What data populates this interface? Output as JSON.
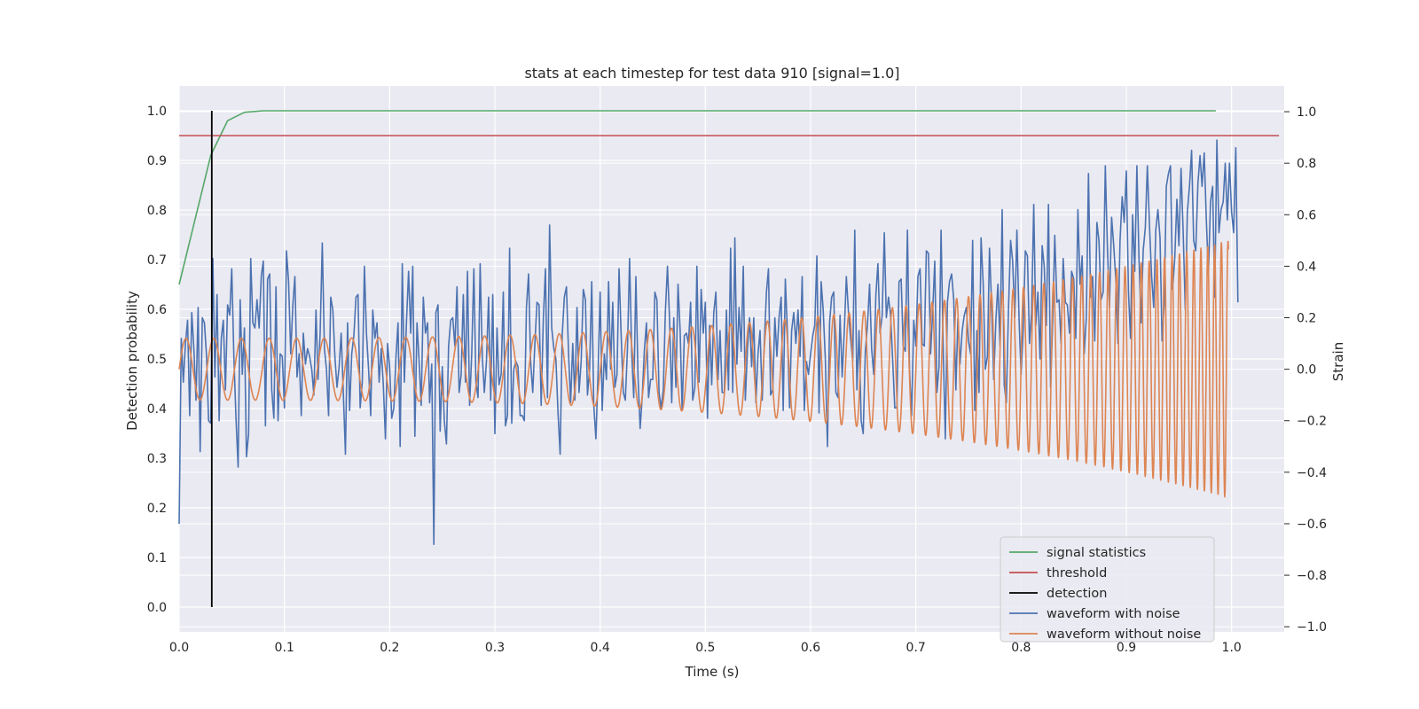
{
  "chart_data": {
    "type": "line",
    "title": "stats at each timestep for test data 910 [signal=1.0]",
    "xlabel": "Time (s)",
    "ylabel_left": "Detection probability",
    "ylabel_right": "Strain",
    "xlim": [
      0.0,
      1.05
    ],
    "ylim_left": [
      -0.05,
      1.05
    ],
    "ylim_right": [
      -1.02,
      1.1
    ],
    "x_ticks": [
      "0.0",
      "0.1",
      "0.2",
      "0.3",
      "0.4",
      "0.5",
      "0.6",
      "0.7",
      "0.8",
      "0.9",
      "1.0"
    ],
    "y_ticks_left": [
      "0.0",
      "0.1",
      "0.2",
      "0.3",
      "0.4",
      "0.5",
      "0.6",
      "0.7",
      "0.8",
      "0.9",
      "1.0"
    ],
    "y_ticks_right": [
      "−1.0",
      "−0.8",
      "−0.6",
      "−0.4",
      "−0.2",
      "0.0",
      "0.2",
      "0.4",
      "0.6",
      "0.8",
      "1.0"
    ],
    "grid": true,
    "legend_position": "lower-right",
    "series": [
      {
        "name": "signal statistics",
        "axis": "left",
        "color": "#55a868",
        "x": [
          0.0,
          0.015,
          0.03,
          0.046,
          0.062,
          0.08,
          0.1,
          0.2,
          0.3,
          0.4,
          0.5,
          0.6,
          0.7,
          0.8,
          0.9,
          0.985
        ],
        "y": [
          0.65,
          0.78,
          0.91,
          0.98,
          0.997,
          1.0,
          1.0,
          1.0,
          1.0,
          1.0,
          1.0,
          1.0,
          1.0,
          1.0,
          1.0,
          1.0
        ]
      },
      {
        "name": "threshold",
        "axis": "left",
        "color": "#c44e52",
        "x": [
          0.0,
          1.045
        ],
        "y": [
          0.95,
          0.95
        ]
      },
      {
        "name": "detection",
        "axis": "left",
        "color": "#000000",
        "x": [
          0.031,
          0.031
        ],
        "y": [
          0.0,
          1.0
        ]
      },
      {
        "name": "waveform with noise",
        "axis": "right",
        "color": "#4c72b0",
        "x_start": 0.0,
        "x_step": 0.002,
        "y": [
          -0.6,
          0.12,
          -0.05,
          0.1,
          0.19,
          -0.18,
          0.22,
          0.08,
          -0.12,
          0.24,
          -0.32,
          0.2,
          0.18,
          0.05,
          -0.2,
          -0.21,
          0.43,
          -0.03,
          0.29,
          -0.2,
          0.12,
          0.19,
          -0.08,
          0.25,
          0.21,
          0.39,
          0.05,
          -0.19,
          -0.38,
          0.27,
          -0.02,
          0.16,
          -0.34,
          -0.25,
          0.43,
          0.18,
          0.16,
          0.27,
          0.16,
          0.36,
          0.42,
          -0.22,
          0.35,
          0.37,
          -0.08,
          -0.19,
          0.32,
          -0.2,
          0.06,
          0.05,
          -0.15,
          0.46,
          0.34,
          0.06,
          0.25,
          0.36,
          -0.03,
          0.06,
          -0.18,
          0.14,
          0.02,
          0.08,
          0.05,
          0.0,
          -0.1,
          0.23,
          -0.04,
          0.14,
          0.49,
          0.08,
          0.0,
          -0.18,
          0.28,
          0.23,
          0.05,
          -0.07,
          0.01,
          0.14,
          -0.09,
          -0.33,
          0.18,
          -0.16,
          0.06,
          0.13,
          0.28,
          0.29,
          -0.15,
          -0.05,
          0.4,
          0.14,
          0.0,
          -0.18,
          0.23,
          0.12,
          0.18,
          -0.05,
          0.08,
          -0.06,
          -0.27,
          0.1,
          0.01,
          -0.19,
          -0.15,
          0.05,
          0.18,
          -0.3,
          0.41,
          -0.05,
          0.18,
          0.38,
          0.14,
          0.4,
          -0.26,
          0.18,
          0.03,
          -0.14,
          0.28,
          0.14,
          0.18,
          -0.13,
          0.02,
          -0.68,
          0.22,
          0.25,
          -0.24,
          0.01,
          -0.2,
          -0.29,
          0.09,
          0.19,
          0.2,
          0.09,
          0.32,
          -0.09,
          -0.02,
          0.29,
          -0.05,
          0.38,
          -0.14,
          0.06,
          0.39,
          -0.05,
          -0.11,
          0.41,
          0.05,
          -0.09,
          0.03,
          0.28,
          -0.12,
          0.29,
          -0.25,
          0.16,
          -0.06,
          -0.02,
          0.3,
          -0.22,
          -0.18,
          0.47,
          -0.21,
          0.0,
          0.03,
          0.01,
          -0.18,
          -0.18,
          -0.2,
          0.24,
          0.37,
          0.03,
          -0.09,
          0.1,
          0.26,
          0.25,
          -0.14,
          0.19,
          0.39,
          -0.11,
          0.56,
          0.16,
          0.08,
          0.04,
          -0.17,
          -0.33,
          0.13,
          0.28,
          0.32,
          0.06,
          -0.13,
          0.1,
          -0.12,
          0.24,
          -0.09,
          0.03,
          0.31,
          0.27,
          -0.1,
          0.0,
          0.34,
          -0.14,
          -0.27,
          -0.02,
          0.3,
          -0.16,
          0.06,
          -0.04,
          0.34,
          0.0,
          0.26,
          -0.07,
          -0.02,
          0.39,
          0.13,
          -0.09,
          -0.12,
          0.08,
          0.43,
          0.06,
          -0.11,
          0.36,
          -0.03,
          -0.23,
          -0.11,
          0.07,
          0.18,
          -0.11,
          -0.04,
          -0.04,
          0.3,
          0.27,
          -0.09,
          -0.15,
          -0.08,
          0.22,
          0.4,
          0.19,
          -0.13,
          0.2,
          -0.07,
          0.33,
          0.15,
          -0.16,
          0.13,
          0.14,
          0.1,
          0.26,
          -0.12,
          -0.07,
          0.4,
          -0.05,
          0.31,
          0.14,
          0.26,
          -0.19,
          0.17,
          -0.06,
          0.22,
          0.3,
          -0.04,
          0.15,
          -0.09,
          -0.09,
          0.23,
          -0.08,
          0.47,
          -0.09,
          0.51,
          0.02,
          0.24,
          0.07,
          0.4,
          -0.12,
          0.08,
          0.2,
          0.01,
          0.2,
          -0.13,
          0.06,
          0.15,
          -0.12,
          0.1,
          0.3,
          0.39,
          -0.1,
          -0.08,
          0.2,
          0.05,
          0.2,
          0.28,
          -0.16,
          0.35,
          0.14,
          -0.15,
          0.15,
          0.22,
          0.1,
          0.23,
          0.05,
          0.36,
          -0.16,
          0.03,
          -0.02,
          0.06,
          0.13,
          0.17,
          0.44,
          -0.17,
          0.34,
          0.23,
          0.04,
          -0.3,
          0.18,
          0.28,
          0.3,
          -0.09,
          -0.11,
          0.21,
          -0.03,
          0.15,
          0.36,
          0.22,
          0.12,
          0.03,
          0.54,
          -0.08,
          0.15,
          -0.2,
          -0.25,
          0.07,
          0.17,
          0.33,
          0.08,
          -0.02,
          0.29,
          0.41,
          0.14,
          0.21,
          0.53,
          0.2,
          0.28,
          0.21,
          0.03,
          -0.15,
          -0.15,
          0.34,
          0.35,
          0.09,
          0.07,
          0.54,
          0.0,
          -0.18,
          0.19,
          0.09,
          0.36,
          0.39,
          0.1,
          0.09,
          0.46,
          0.45,
          0.06,
          0.23,
          0.42,
          -0.09,
          0.01,
          0.54,
          0.08,
          -0.27,
          0.26,
          0.34,
          0.37,
          0.27,
          -0.08,
          0.2,
          0.02,
          0.15,
          0.21,
          0.24,
          0.11,
          0.06,
          0.5,
          -0.16,
          0.15,
          -0.09,
          0.51,
          0.33,
          0.0,
          0.05,
          0.47,
          0.25,
          -0.04,
          0.19,
          0.33,
          0.09,
          0.62,
          -0.06,
          -0.13,
          0.23,
          0.5,
          0.42,
          0.2,
          0.54,
          0.2,
          -0.02,
          0.15,
          0.46,
          0.44,
          0.1,
          0.22,
          0.64,
          0.17,
          0.3,
          0.04,
          0.48,
          0.4,
          0.17,
          0.64,
          -0.07,
          0.18,
          0.52,
          0.26,
          0.27,
          0.1,
          0.43,
          0.26,
          0.25,
          0.14,
          0.38,
          0.35,
          0.12,
          0.62,
          0.33,
          0.44,
          0.06,
          0.2,
          0.76,
          0.28,
          0.36,
          0.11,
          0.57,
          0.5,
          0.27,
          0.3,
          0.79,
          0.48,
          0.24,
          0.59,
          0.48,
          0.35,
          0.1,
          0.5,
          0.67,
          0.57,
          0.77,
          0.3,
          0.12,
          0.6,
          0.38,
          0.79,
          0.44,
          0.18,
          0.46,
          0.55,
          0.79,
          0.56,
          0.36,
          0.24,
          0.54,
          0.62,
          0.51,
          0.11,
          0.25,
          0.71,
          0.76,
          0.79,
          0.31,
          0.43,
          0.66,
          0.48,
          0.78,
          0.53,
          0.23,
          0.61,
          0.71,
          0.85,
          0.5,
          0.46,
          0.72,
          0.83,
          0.71,
          0.84,
          0.58,
          0.37,
          0.65,
          0.71,
          0.28,
          0.89,
          0.53,
          0.62,
          0.65,
          0.8,
          0.58,
          0.8,
          0.61,
          0.53,
          0.86,
          0.26
        ]
      },
      {
        "name": "waveform without noise",
        "axis": "right",
        "color": "#dd8452",
        "x_start": 0.0,
        "x_end": 0.997,
        "amplitude_start": 0.12,
        "amplitude_end": 0.5,
        "cycles_start_per_s": 38,
        "cycles_end_per_s": 160
      }
    ]
  }
}
